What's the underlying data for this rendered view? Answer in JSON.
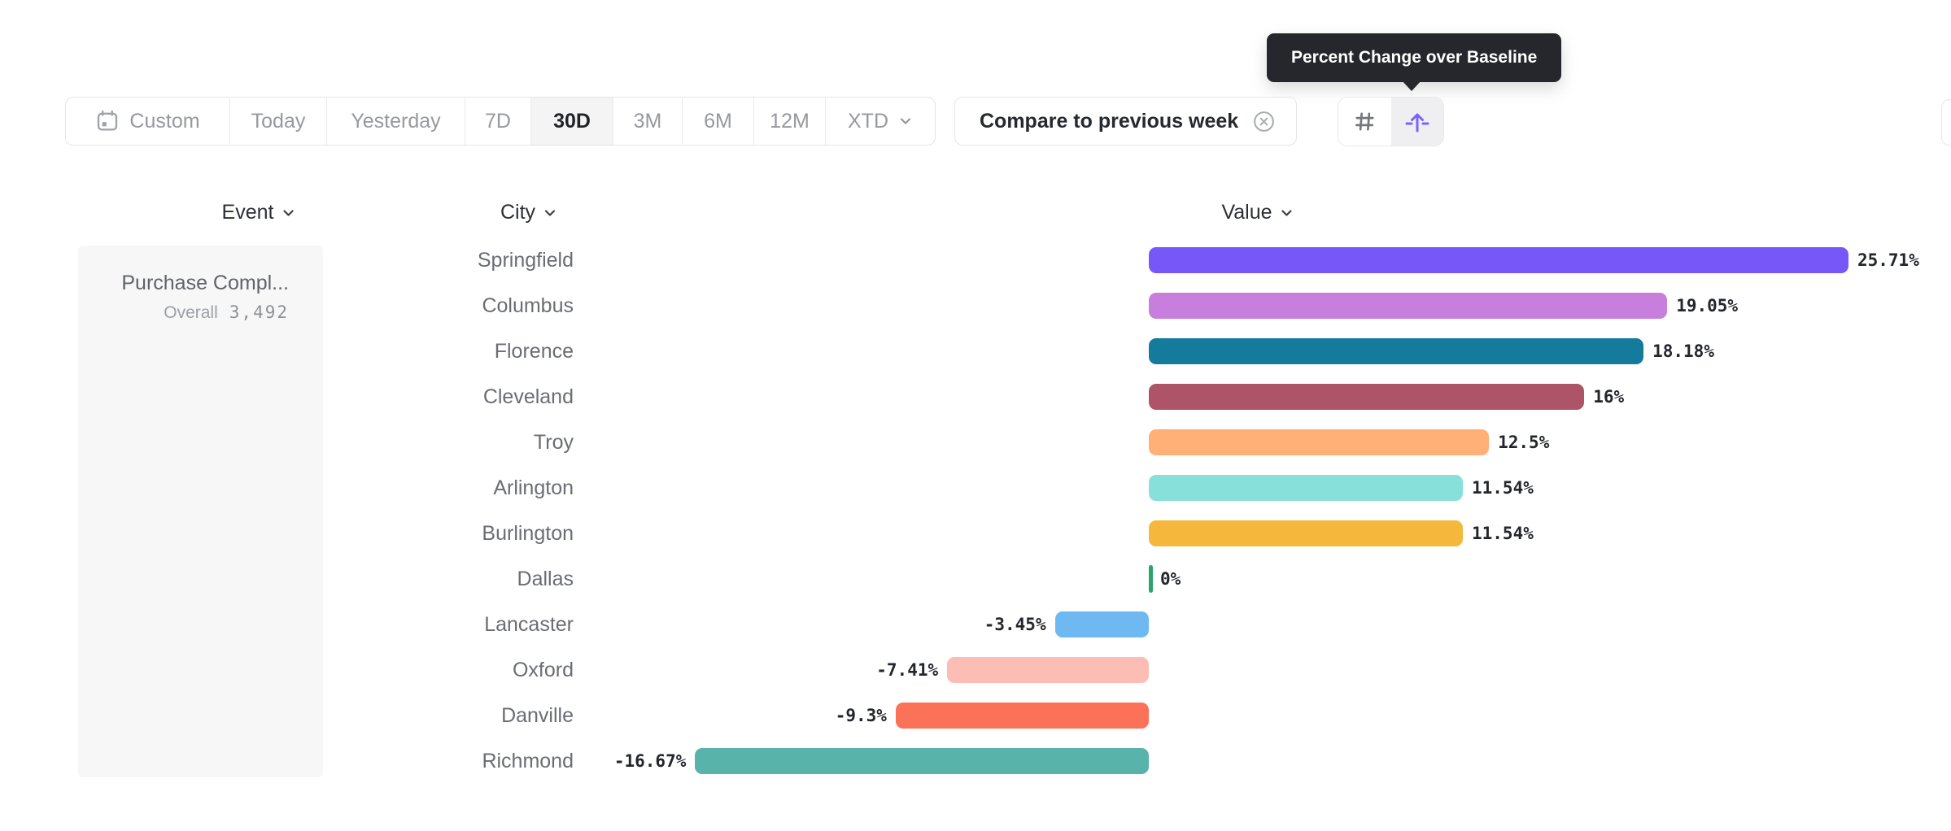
{
  "tooltip": {
    "text": "Percent Change over Baseline"
  },
  "toolbar": {
    "date_ranges": [
      {
        "label": "Custom",
        "selected": false,
        "icon": "calendar"
      },
      {
        "label": "Today",
        "selected": false
      },
      {
        "label": "Yesterday",
        "selected": false
      },
      {
        "label": "7D",
        "selected": false
      },
      {
        "label": "30D",
        "selected": true
      },
      {
        "label": "3M",
        "selected": false
      },
      {
        "label": "6M",
        "selected": false
      },
      {
        "label": "12M",
        "selected": false
      },
      {
        "label": "XTD",
        "selected": false,
        "icon": "chevron-down"
      }
    ],
    "compare_chip": {
      "label": "Compare to previous week",
      "close_icon": "circle-x-icon"
    },
    "view_toggle": [
      {
        "name": "number-format",
        "icon": "hash-icon",
        "selected": false
      },
      {
        "name": "percent-change-over-baseline",
        "icon": "baseline-arrow-icon",
        "selected": true
      }
    ]
  },
  "table": {
    "columns": [
      {
        "label": "Event"
      },
      {
        "label": "City"
      },
      {
        "label": "Value"
      }
    ],
    "event": {
      "name": "Purchase Compl...",
      "overall_label": "Overall",
      "overall_value": "3,492"
    }
  },
  "chart_data": {
    "type": "bar",
    "orientation": "horizontal",
    "title": "",
    "xlabel": "Value",
    "ylabel": "City",
    "xlim": [
      -16.67,
      25.71
    ],
    "grid": false,
    "categories": [
      "Springfield",
      "Columbus",
      "Florence",
      "Cleveland",
      "Troy",
      "Arlington",
      "Burlington",
      "Dallas",
      "Lancaster",
      "Oxford",
      "Danville",
      "Richmond"
    ],
    "values": [
      25.71,
      19.05,
      18.18,
      16,
      12.5,
      11.54,
      11.54,
      0,
      -3.45,
      -7.41,
      -9.3,
      -16.67
    ],
    "labels": [
      "25.71%",
      "19.05%",
      "18.18%",
      "16%",
      "12.5%",
      "11.54%",
      "11.54%",
      "0%",
      "-3.45%",
      "-7.41%",
      "-9.3%",
      "-16.67%"
    ],
    "colors": [
      "#7757F8",
      "#C77EDD",
      "#147B9D",
      "#AE5469",
      "#FFB077",
      "#87E0D9",
      "#F5B83D",
      "#2BA36B",
      "#6FB9F2",
      "#FCBDB4",
      "#FC7258",
      "#58B4AB"
    ]
  }
}
